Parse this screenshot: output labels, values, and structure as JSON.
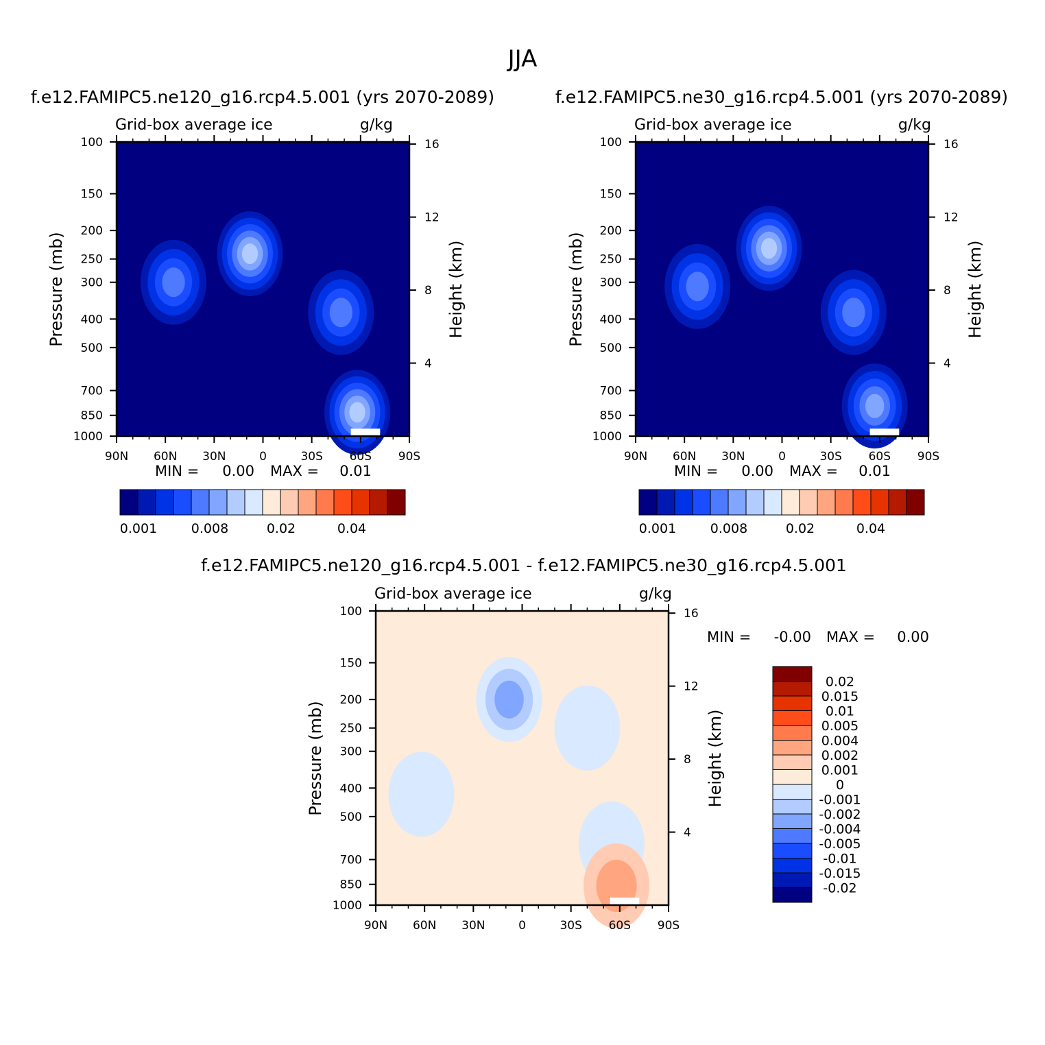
{
  "figure_title": "JJA",
  "palette": [
    "#000080",
    "#0019b3",
    "#0033e6",
    "#1a4dff",
    "#4d7aff",
    "#80a6ff",
    "#b3ccff",
    "#d9e9ff",
    "#ffebd9",
    "#ffccb3",
    "#ffa680",
    "#ff7a4d",
    "#ff4d1a",
    "#e63300",
    "#b31a00",
    "#800000"
  ],
  "chart_data": [
    {
      "type": "heatmap",
      "case": "f.e12.FAMIPC5.ne120_g16.rcp4.5.001 (yrs 2070-2089)",
      "title": "Grid-box average ice",
      "units": "g/kg",
      "ylabel": "Pressure (mb)",
      "y2label": "Height (km)",
      "x_ticks": [
        "90N",
        "60N",
        "30N",
        "0",
        "30S",
        "60S",
        "90S"
      ],
      "y_ticks": [
        100,
        150,
        200,
        250,
        300,
        400,
        500,
        700,
        850,
        1000
      ],
      "y2_ticks": [
        16,
        12,
        8,
        4
      ],
      "xlim": [
        90,
        -90
      ],
      "ylim": [
        1000,
        100
      ],
      "min_label": "MIN =",
      "min_value": "0.00",
      "max_label": "MAX =",
      "max_value": "0.01",
      "colorbar_labels": [
        "0.001",
        "0.008",
        "0.02",
        "0.04"
      ],
      "features": [
        {
          "lat": 55,
          "p": 300,
          "level": 4
        },
        {
          "lat": 8,
          "p": 240,
          "level": 6
        },
        {
          "lat": -48,
          "p": 380,
          "level": 4
        },
        {
          "lat": -58,
          "p": 830,
          "level": 6
        }
      ]
    },
    {
      "type": "heatmap",
      "case": "f.e12.FAMIPC5.ne30_g16.rcp4.5.001 (yrs 2070-2089)",
      "title": "Grid-box average ice",
      "units": "g/kg",
      "ylabel": "Pressure (mb)",
      "y2label": "Height (km)",
      "x_ticks": [
        "90N",
        "60N",
        "30N",
        "0",
        "30S",
        "60S",
        "90S"
      ],
      "y_ticks": [
        100,
        150,
        200,
        250,
        300,
        400,
        500,
        700,
        850,
        1000
      ],
      "y2_ticks": [
        16,
        12,
        8,
        4
      ],
      "xlim": [
        90,
        -90
      ],
      "ylim": [
        1000,
        100
      ],
      "min_label": "MIN =",
      "min_value": "0.00",
      "max_label": "MAX =",
      "max_value": "0.01",
      "colorbar_labels": [
        "0.001",
        "0.008",
        "0.02",
        "0.04"
      ],
      "features": [
        {
          "lat": 52,
          "p": 310,
          "level": 4
        },
        {
          "lat": 8,
          "p": 230,
          "level": 6
        },
        {
          "lat": -44,
          "p": 380,
          "level": 4
        },
        {
          "lat": -57,
          "p": 790,
          "level": 5
        }
      ]
    },
    {
      "type": "heatmap",
      "case": "f.e12.FAMIPC5.ne120_g16.rcp4.5.001 - f.e12.FAMIPC5.ne30_g16.rcp4.5.001",
      "title": "Grid-box average ice",
      "units": "g/kg",
      "ylabel": "Pressure (mb)",
      "y2label": "Height (km)",
      "x_ticks": [
        "90N",
        "60N",
        "30N",
        "0",
        "30S",
        "60S",
        "90S"
      ],
      "y_ticks": [
        100,
        150,
        200,
        250,
        300,
        400,
        500,
        700,
        850,
        1000
      ],
      "y2_ticks": [
        16,
        12,
        8,
        4
      ],
      "xlim": [
        90,
        -90
      ],
      "ylim": [
        1000,
        100
      ],
      "min_label": "MIN =",
      "min_value": "-0.00",
      "max_label": "MAX =",
      "max_value": "0.00",
      "colorbar_labels": [
        "0.02",
        "0.015",
        "0.01",
        "0.005",
        "0.004",
        "0.002",
        "0.001",
        "0",
        "-0.001",
        "-0.002",
        "-0.004",
        "-0.005",
        "-0.01",
        "-0.015",
        "-0.02"
      ],
      "features": [
        {
          "lat": 8,
          "p": 200,
          "level": 5
        },
        {
          "lat": 62,
          "p": 420,
          "level": 7
        },
        {
          "lat": -40,
          "p": 250,
          "level": 7
        },
        {
          "lat": -55,
          "p": 620,
          "level": 7
        },
        {
          "lat": -58,
          "p": 860,
          "level": 10
        }
      ]
    }
  ]
}
